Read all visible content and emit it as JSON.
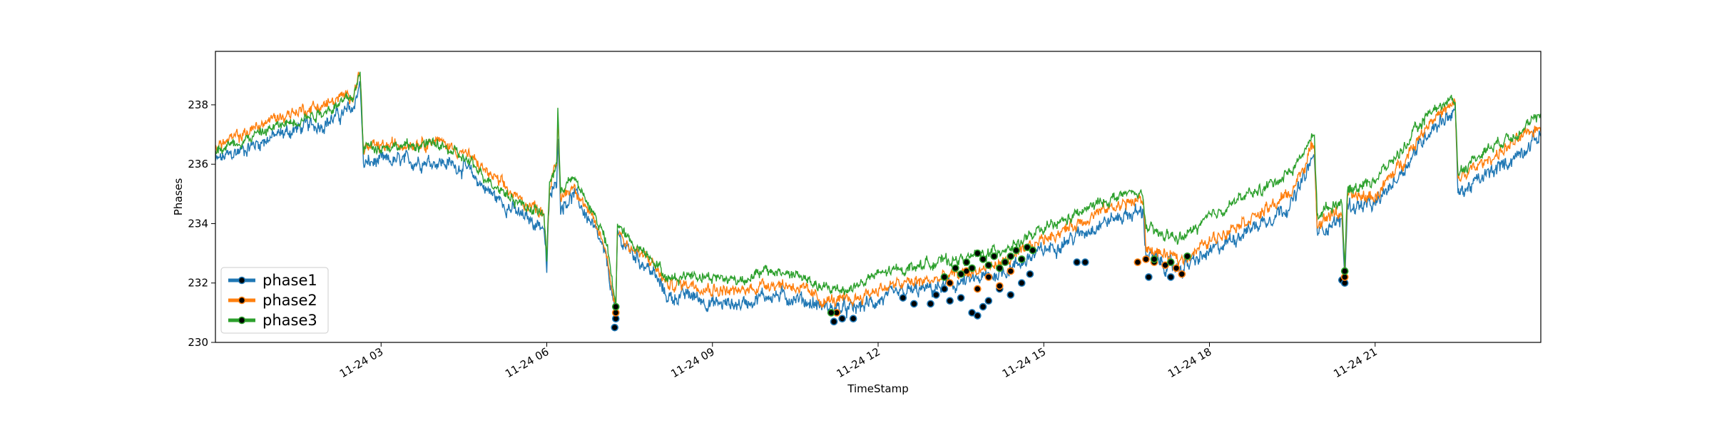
{
  "chart_data": {
    "type": "line",
    "title": "",
    "xlabel": "TimeStamp",
    "ylabel": "Phases",
    "xlim": [
      "2023-11-24 00:00",
      "2023-11-25 00:00"
    ],
    "ylim": [
      230,
      239.8
    ],
    "grid": false,
    "legend": "lower-left",
    "x_tick_labels": [
      "11-24 03",
      "11-24 06",
      "11-24 09",
      "11-24 12",
      "11-24 15",
      "11-24 18",
      "11-24 21"
    ],
    "x_tick_hours": [
      3,
      6,
      9,
      12,
      15,
      18,
      21
    ],
    "y_ticks": [
      230,
      232,
      234,
      236,
      238
    ],
    "noise": [
      0.3,
      0.25,
      0.22
    ],
    "series": [
      {
        "name": "phase1",
        "color": "#1f77b4",
        "marker": "o",
        "points": [
          [
            0.0,
            236.1
          ],
          [
            0.5,
            236.5
          ],
          [
            1.0,
            236.9
          ],
          [
            1.5,
            237.2
          ],
          [
            2.0,
            237.4
          ],
          [
            2.5,
            237.9
          ],
          [
            2.62,
            238.8
          ],
          [
            2.68,
            236.0
          ],
          [
            3.0,
            236.1
          ],
          [
            3.5,
            236.1
          ],
          [
            4.0,
            236.1
          ],
          [
            4.5,
            235.9
          ],
          [
            5.0,
            235.0
          ],
          [
            5.5,
            234.3
          ],
          [
            5.95,
            233.9
          ],
          [
            6.0,
            232.4
          ],
          [
            6.05,
            234.9
          ],
          [
            6.18,
            235.3
          ],
          [
            6.2,
            237.2
          ],
          [
            6.25,
            234.6
          ],
          [
            6.5,
            235.0
          ],
          [
            6.8,
            234.0
          ],
          [
            7.0,
            233.2
          ],
          [
            7.1,
            232.6
          ],
          [
            7.25,
            230.9
          ],
          [
            7.28,
            233.6
          ],
          [
            7.5,
            233.1
          ],
          [
            7.9,
            232.4
          ],
          [
            8.2,
            231.5
          ],
          [
            8.6,
            231.6
          ],
          [
            9.0,
            231.3
          ],
          [
            9.5,
            231.3
          ],
          [
            10.0,
            231.6
          ],
          [
            10.5,
            231.5
          ],
          [
            11.0,
            231.2
          ],
          [
            11.5,
            231.1
          ],
          [
            12.0,
            231.4
          ],
          [
            12.5,
            231.7
          ],
          [
            13.0,
            231.8
          ],
          [
            13.5,
            232.0
          ],
          [
            14.0,
            232.2
          ],
          [
            14.5,
            232.6
          ],
          [
            15.0,
            233.1
          ],
          [
            15.5,
            233.5
          ],
          [
            16.0,
            234.0
          ],
          [
            16.5,
            234.3
          ],
          [
            16.8,
            234.4
          ],
          [
            16.85,
            233.0
          ],
          [
            17.2,
            232.6
          ],
          [
            17.5,
            232.5
          ],
          [
            18.0,
            233.0
          ],
          [
            18.5,
            233.6
          ],
          [
            19.0,
            234.1
          ],
          [
            19.5,
            234.7
          ],
          [
            19.9,
            236.3
          ],
          [
            19.95,
            233.7
          ],
          [
            20.2,
            234.0
          ],
          [
            20.4,
            234.1
          ],
          [
            20.45,
            232.1
          ],
          [
            20.5,
            234.6
          ],
          [
            21.0,
            234.6
          ],
          [
            21.5,
            235.8
          ],
          [
            22.0,
            237.2
          ],
          [
            22.45,
            237.8
          ],
          [
            22.5,
            235.0
          ],
          [
            23.0,
            235.6
          ],
          [
            23.5,
            236.2
          ],
          [
            24.0,
            237.0
          ]
        ],
        "anomalies": [
          [
            7.23,
            230.5
          ],
          [
            7.25,
            230.8
          ],
          [
            11.2,
            230.7
          ],
          [
            11.35,
            230.8
          ],
          [
            11.55,
            230.8
          ],
          [
            12.45,
            231.5
          ],
          [
            12.65,
            231.3
          ],
          [
            12.95,
            231.3
          ],
          [
            13.05,
            231.6
          ],
          [
            13.2,
            231.8
          ],
          [
            13.3,
            231.4
          ],
          [
            13.5,
            231.5
          ],
          [
            13.7,
            231.0
          ],
          [
            13.8,
            230.9
          ],
          [
            13.9,
            231.2
          ],
          [
            14.0,
            231.4
          ],
          [
            14.2,
            231.8
          ],
          [
            14.4,
            231.6
          ],
          [
            14.6,
            232.0
          ],
          [
            14.75,
            232.3
          ],
          [
            15.6,
            232.7
          ],
          [
            15.75,
            232.7
          ],
          [
            16.9,
            232.2
          ],
          [
            17.3,
            232.2
          ],
          [
            20.4,
            232.1
          ],
          [
            20.45,
            232.0
          ]
        ]
      },
      {
        "name": "phase2",
        "color": "#ff7f0e",
        "marker": "o",
        "points": [
          [
            0.0,
            236.6
          ],
          [
            0.5,
            237.0
          ],
          [
            1.0,
            237.5
          ],
          [
            1.5,
            237.8
          ],
          [
            2.0,
            238.0
          ],
          [
            2.5,
            238.4
          ],
          [
            2.62,
            239.1
          ],
          [
            2.68,
            236.5
          ],
          [
            3.0,
            236.6
          ],
          [
            3.5,
            236.7
          ],
          [
            4.0,
            236.8
          ],
          [
            4.5,
            236.4
          ],
          [
            5.0,
            235.6
          ],
          [
            5.5,
            234.8
          ],
          [
            5.95,
            234.4
          ],
          [
            6.0,
            232.9
          ],
          [
            6.05,
            235.3
          ],
          [
            6.18,
            235.9
          ],
          [
            6.2,
            237.6
          ],
          [
            6.25,
            234.9
          ],
          [
            6.5,
            235.3
          ],
          [
            6.8,
            234.2
          ],
          [
            7.0,
            233.5
          ],
          [
            7.1,
            232.8
          ],
          [
            7.25,
            231.1
          ],
          [
            7.28,
            233.8
          ],
          [
            7.5,
            233.2
          ],
          [
            7.9,
            232.7
          ],
          [
            8.2,
            231.9
          ],
          [
            8.6,
            232.0
          ],
          [
            9.0,
            231.8
          ],
          [
            9.5,
            231.7
          ],
          [
            10.0,
            232.0
          ],
          [
            10.5,
            231.9
          ],
          [
            11.0,
            231.4
          ],
          [
            11.5,
            231.4
          ],
          [
            12.0,
            231.8
          ],
          [
            12.5,
            232.0
          ],
          [
            13.0,
            232.1
          ],
          [
            13.5,
            232.3
          ],
          [
            14.0,
            232.5
          ],
          [
            14.5,
            232.9
          ],
          [
            15.0,
            233.5
          ],
          [
            15.5,
            233.9
          ],
          [
            16.0,
            234.4
          ],
          [
            16.5,
            234.7
          ],
          [
            16.8,
            234.8
          ],
          [
            16.85,
            233.2
          ],
          [
            17.2,
            232.9
          ],
          [
            17.5,
            232.8
          ],
          [
            18.0,
            233.4
          ],
          [
            18.5,
            234.0
          ],
          [
            19.0,
            234.4
          ],
          [
            19.5,
            235.1
          ],
          [
            19.9,
            236.7
          ],
          [
            19.95,
            234.0
          ],
          [
            20.2,
            234.3
          ],
          [
            20.4,
            234.4
          ],
          [
            20.45,
            232.3
          ],
          [
            20.5,
            234.9
          ],
          [
            21.0,
            234.9
          ],
          [
            21.5,
            236.1
          ],
          [
            22.0,
            237.5
          ],
          [
            22.45,
            238.0
          ],
          [
            22.5,
            235.5
          ],
          [
            23.0,
            236.1
          ],
          [
            23.5,
            236.7
          ],
          [
            24.0,
            237.3
          ]
        ],
        "anomalies": [
          [
            7.25,
            231.0
          ],
          [
            11.25,
            231.0
          ],
          [
            13.3,
            232.0
          ],
          [
            13.6,
            232.4
          ],
          [
            13.8,
            231.8
          ],
          [
            14.0,
            232.2
          ],
          [
            14.2,
            231.9
          ],
          [
            14.4,
            232.4
          ],
          [
            16.7,
            232.7
          ],
          [
            16.85,
            232.8
          ],
          [
            17.0,
            232.7
          ],
          [
            17.2,
            232.6
          ],
          [
            17.4,
            232.5
          ],
          [
            17.5,
            232.3
          ],
          [
            20.45,
            232.2
          ]
        ]
      },
      {
        "name": "phase3",
        "color": "#2ca02c",
        "marker": "o",
        "points": [
          [
            0.0,
            236.5
          ],
          [
            0.5,
            236.8
          ],
          [
            1.0,
            237.2
          ],
          [
            1.5,
            237.5
          ],
          [
            2.0,
            237.8
          ],
          [
            2.5,
            238.3
          ],
          [
            2.62,
            239.0
          ],
          [
            2.68,
            236.6
          ],
          [
            3.0,
            236.6
          ],
          [
            3.5,
            236.6
          ],
          [
            4.0,
            236.7
          ],
          [
            4.5,
            236.2
          ],
          [
            5.0,
            235.4
          ],
          [
            5.5,
            234.7
          ],
          [
            5.95,
            234.3
          ],
          [
            6.0,
            232.8
          ],
          [
            6.05,
            235.4
          ],
          [
            6.18,
            236.0
          ],
          [
            6.2,
            237.7
          ],
          [
            6.25,
            235.2
          ],
          [
            6.5,
            235.5
          ],
          [
            6.8,
            234.5
          ],
          [
            7.0,
            233.8
          ],
          [
            7.1,
            233.1
          ],
          [
            7.25,
            231.2
          ],
          [
            7.28,
            234.0
          ],
          [
            7.5,
            233.4
          ],
          [
            7.9,
            232.9
          ],
          [
            8.2,
            232.1
          ],
          [
            8.6,
            232.3
          ],
          [
            9.0,
            232.2
          ],
          [
            9.5,
            232.1
          ],
          [
            10.0,
            232.4
          ],
          [
            10.5,
            232.3
          ],
          [
            11.0,
            231.8
          ],
          [
            11.5,
            231.8
          ],
          [
            12.0,
            232.3
          ],
          [
            12.5,
            232.5
          ],
          [
            13.0,
            232.7
          ],
          [
            13.5,
            232.8
          ],
          [
            14.0,
            233.0
          ],
          [
            14.5,
            233.3
          ],
          [
            15.0,
            233.8
          ],
          [
            15.5,
            234.2
          ],
          [
            16.0,
            234.7
          ],
          [
            16.5,
            235.0
          ],
          [
            16.8,
            235.0
          ],
          [
            16.85,
            233.8
          ],
          [
            17.2,
            233.6
          ],
          [
            17.5,
            233.5
          ],
          [
            18.0,
            234.2
          ],
          [
            18.5,
            234.8
          ],
          [
            19.0,
            235.2
          ],
          [
            19.5,
            235.8
          ],
          [
            19.9,
            237.0
          ],
          [
            19.95,
            234.3
          ],
          [
            20.2,
            234.6
          ],
          [
            20.4,
            234.8
          ],
          [
            20.45,
            232.5
          ],
          [
            20.5,
            235.1
          ],
          [
            21.0,
            235.5
          ],
          [
            21.5,
            236.5
          ],
          [
            22.0,
            237.8
          ],
          [
            22.45,
            238.2
          ],
          [
            22.5,
            235.7
          ],
          [
            23.0,
            236.5
          ],
          [
            23.5,
            237.0
          ],
          [
            24.0,
            237.6
          ]
        ],
        "anomalies": [
          [
            7.25,
            231.2
          ],
          [
            11.15,
            231.0
          ],
          [
            13.2,
            232.2
          ],
          [
            13.4,
            232.5
          ],
          [
            13.5,
            232.3
          ],
          [
            13.6,
            232.7
          ],
          [
            13.7,
            232.5
          ],
          [
            13.8,
            233.0
          ],
          [
            13.9,
            232.8
          ],
          [
            14.0,
            232.6
          ],
          [
            14.1,
            232.9
          ],
          [
            14.2,
            232.5
          ],
          [
            14.3,
            232.7
          ],
          [
            14.4,
            232.9
          ],
          [
            14.5,
            233.1
          ],
          [
            14.6,
            232.8
          ],
          [
            14.7,
            233.2
          ],
          [
            14.8,
            233.1
          ],
          [
            17.0,
            232.8
          ],
          [
            17.3,
            232.7
          ],
          [
            17.6,
            232.9
          ],
          [
            20.45,
            232.4
          ]
        ]
      }
    ]
  }
}
